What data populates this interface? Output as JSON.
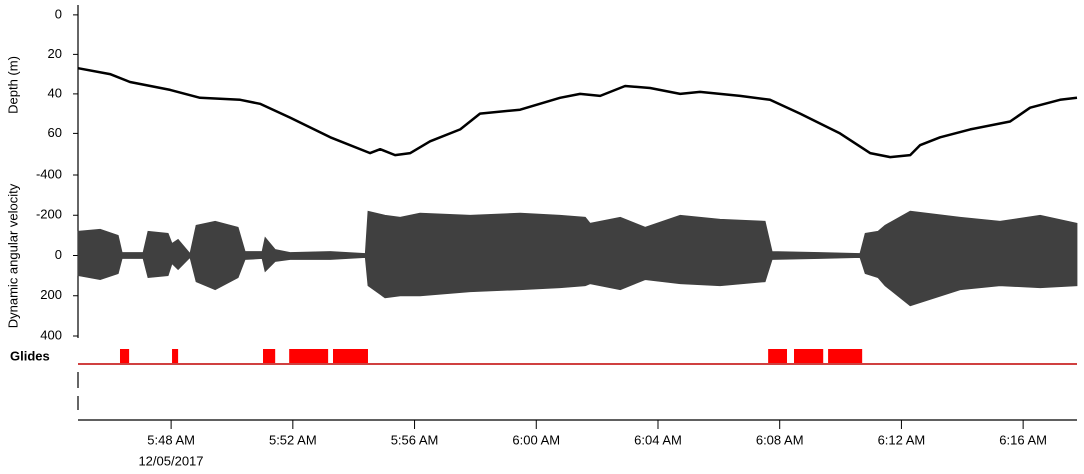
{
  "chart_data": [
    {
      "type": "line",
      "y_label": "Depth (m)",
      "color": "#000000",
      "invert_y": true,
      "xlim": [
        344.94,
        377.77
      ],
      "ylim": [
        -5,
        76
      ],
      "yticks": [
        0,
        20,
        40,
        60
      ],
      "x": [
        344.94,
        345.99,
        346.65,
        347.97,
        348.95,
        350.27,
        350.92,
        351.91,
        353.23,
        354.54,
        354.87,
        355.36,
        355.86,
        356.51,
        357.5,
        358.15,
        359.47,
        360.78,
        361.44,
        362.1,
        362.92,
        363.74,
        364.73,
        365.38,
        366.7,
        367.68,
        368.67,
        369.98,
        370.97,
        371.63,
        372.29,
        372.61,
        373.27,
        374.26,
        375.57,
        376.23,
        377.21,
        377.77
      ],
      "values": [
        27,
        30,
        34,
        38,
        42,
        43,
        45,
        52,
        62,
        70,
        68,
        71,
        70,
        64,
        58,
        50,
        48,
        42,
        40,
        41,
        36,
        37,
        40,
        39,
        41,
        43,
        50,
        60,
        70,
        72,
        71,
        66,
        62,
        58,
        54,
        47,
        43,
        42
      ]
    },
    {
      "type": "band",
      "y_label": "Dynamic angular velocity",
      "color": "#404040",
      "invert_y": true,
      "xlim": [
        344.94,
        377.77
      ],
      "ylim": [
        -400,
        400
      ],
      "yticks": [
        -400,
        -200,
        0,
        200,
        400
      ],
      "x": [
        344.94,
        345.67,
        346.26,
        346.39,
        347.08,
        347.24,
        347.9,
        348.03,
        348.23,
        348.62,
        348.82,
        349.45,
        350.2,
        350.43,
        350.99,
        351.09,
        351.42,
        351.91,
        353.23,
        354.38,
        354.47,
        355.03,
        355.53,
        356.18,
        357.83,
        359.47,
        360.78,
        361.61,
        361.77,
        362.76,
        363.58,
        364.73,
        366.04,
        367.52,
        367.75,
        369.33,
        370.64,
        370.81,
        371.23,
        371.46,
        372.29,
        373.93,
        375.24,
        376.56,
        377.77
      ],
      "low": [
        -120,
        -130,
        -100,
        -15,
        -15,
        -120,
        -110,
        -60,
        -80,
        -10,
        -150,
        -170,
        -140,
        -20,
        -20,
        -90,
        -30,
        -15,
        -20,
        -10,
        -220,
        -200,
        -190,
        -210,
        -200,
        -210,
        -200,
        -190,
        -160,
        -190,
        -140,
        -200,
        -180,
        -170,
        -20,
        -15,
        -10,
        -110,
        -120,
        -150,
        -220,
        -190,
        -170,
        -200,
        -160
      ],
      "high": [
        100,
        120,
        90,
        15,
        15,
        110,
        100,
        40,
        70,
        10,
        130,
        170,
        110,
        20,
        15,
        80,
        30,
        20,
        20,
        10,
        150,
        210,
        200,
        200,
        180,
        170,
        160,
        150,
        140,
        170,
        120,
        140,
        150,
        130,
        20,
        15,
        10,
        90,
        110,
        150,
        250,
        170,
        150,
        160,
        150
      ]
    },
    {
      "type": "intervals",
      "y_label": "Glides",
      "color": "#ff0000",
      "xlim": [
        344.94,
        377.77
      ],
      "starts": [
        346.32,
        348.03,
        351.02,
        351.88,
        353.32,
        367.62,
        368.47,
        369.59
      ],
      "ends": [
        346.62,
        348.23,
        351.42,
        353.16,
        354.47,
        368.24,
        369.43,
        370.71
      ],
      "xticks": [
        {
          "value": 348,
          "label": "5:48 AM"
        },
        {
          "value": 352,
          "label": "5:52 AM"
        },
        {
          "value": 356,
          "label": "5:56 AM"
        },
        {
          "value": 360,
          "label": "6:00 AM"
        },
        {
          "value": 364,
          "label": "6:04 AM"
        },
        {
          "value": 368,
          "label": "6:08 AM"
        },
        {
          "value": 372,
          "label": "6:12 AM"
        },
        {
          "value": 376,
          "label": "6:16 AM"
        }
      ],
      "date_label": "12/05/2017"
    }
  ]
}
